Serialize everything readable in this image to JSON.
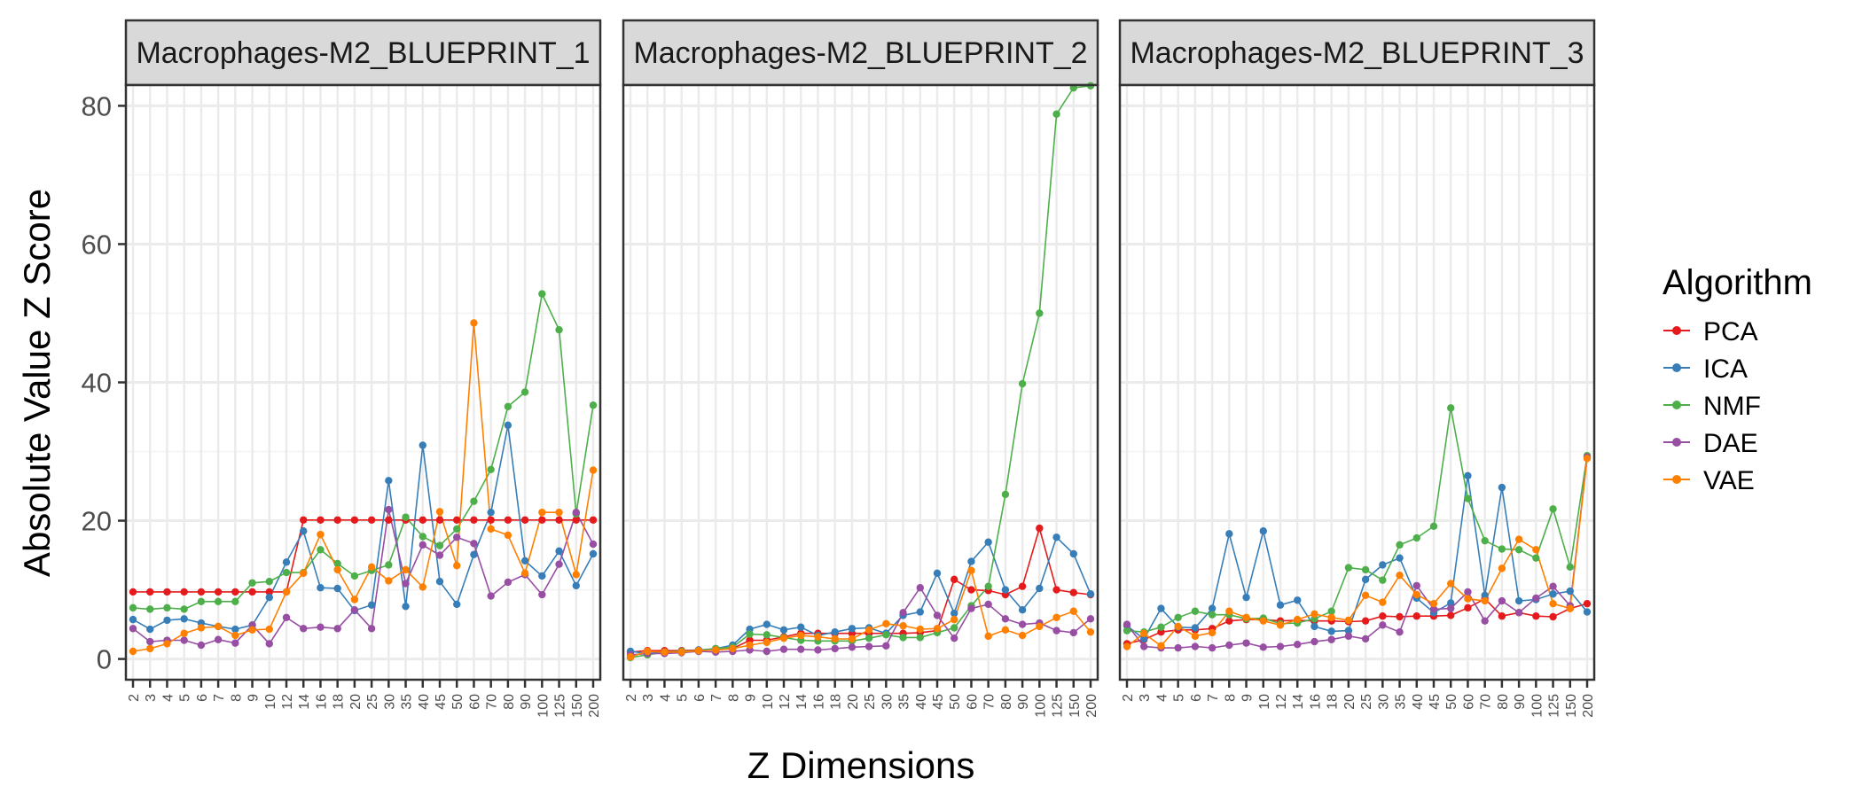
{
  "chart_data": {
    "type": "line",
    "xlabel": "Z Dimensions",
    "ylabel": "Absolute Value Z Score",
    "ylim": [
      -3,
      83
    ],
    "yticks": [
      0,
      20,
      40,
      60,
      80
    ],
    "grid": true,
    "legend_position": "right",
    "legend_title": "Algorithm",
    "categories": [
      "2",
      "3",
      "4",
      "5",
      "6",
      "7",
      "8",
      "9",
      "10",
      "12",
      "14",
      "16",
      "18",
      "20",
      "25",
      "30",
      "35",
      "40",
      "45",
      "50",
      "60",
      "70",
      "80",
      "90",
      "100",
      "125",
      "150",
      "200"
    ],
    "series_meta": [
      {
        "name": "PCA",
        "color": "#e41a1c"
      },
      {
        "name": "ICA",
        "color": "#377eb8"
      },
      {
        "name": "NMF",
        "color": "#4daf4a"
      },
      {
        "name": "DAE",
        "color": "#984ea3"
      },
      {
        "name": "VAE",
        "color": "#ff7f00"
      }
    ],
    "panels": [
      {
        "title": "Macrophages-M2_BLUEPRINT_1",
        "series": [
          {
            "name": "PCA",
            "values": [
              9.7,
              9.7,
              9.7,
              9.7,
              9.7,
              9.7,
              9.7,
              9.7,
              9.7,
              9.7,
              20.1,
              20.1,
              20.1,
              20.1,
              20.1,
              20.1,
              20.1,
              20.1,
              20.1,
              20.1,
              20.1,
              20.1,
              20.1,
              20.1,
              20.1,
              20.1,
              20.1,
              20.1
            ]
          },
          {
            "name": "ICA",
            "values": [
              5.7,
              4.3,
              5.6,
              5.8,
              5.2,
              4.7,
              4.3,
              4.9,
              8.9,
              14.0,
              18.5,
              10.3,
              10.2,
              7.0,
              7.8,
              25.8,
              7.6,
              30.9,
              11.2,
              7.9,
              15.1,
              21.2,
              33.8,
              14.2,
              12.0,
              15.6,
              10.6,
              15.2
            ]
          },
          {
            "name": "NMF",
            "values": [
              7.4,
              7.2,
              7.4,
              7.2,
              8.3,
              8.3,
              8.3,
              11.0,
              11.2,
              12.5,
              12.5,
              15.8,
              13.8,
              12.0,
              12.8,
              13.6,
              20.5,
              17.7,
              16.4,
              18.8,
              22.8,
              27.4,
              36.5,
              38.6,
              52.8,
              47.6,
              21.0,
              36.7
            ]
          },
          {
            "name": "DAE",
            "values": [
              4.4,
              2.5,
              2.7,
              2.7,
              2.0,
              2.8,
              2.3,
              4.9,
              2.2,
              6.0,
              4.4,
              4.6,
              4.4,
              7.1,
              4.4,
              21.6,
              10.9,
              16.5,
              15.0,
              17.6,
              16.7,
              9.1,
              11.1,
              12.2,
              9.3,
              13.7,
              21.2,
              16.6
            ]
          },
          {
            "name": "VAE",
            "values": [
              1.1,
              1.5,
              2.2,
              3.7,
              4.5,
              4.7,
              3.4,
              4.2,
              4.3,
              9.7,
              12.4,
              18.0,
              12.9,
              8.6,
              13.3,
              11.3,
              12.9,
              10.4,
              21.3,
              13.5,
              48.6,
              18.8,
              17.9,
              12.4,
              21.2,
              21.2,
              12.2,
              27.3
            ]
          }
        ]
      },
      {
        "title": "Macrophages-M2_BLUEPRINT_2",
        "series": [
          {
            "name": "PCA",
            "values": [
              1.0,
              1.2,
              1.2,
              1.2,
              1.3,
              1.3,
              1.5,
              2.7,
              2.7,
              3.2,
              3.7,
              3.7,
              3.7,
              3.7,
              3.7,
              3.7,
              3.7,
              3.8,
              4.1,
              11.5,
              10.0,
              9.9,
              9.3,
              10.5,
              18.9,
              10.0,
              9.6,
              9.3
            ]
          },
          {
            "name": "ICA",
            "values": [
              1.1,
              0.8,
              1.0,
              1.0,
              1.3,
              1.5,
              2.0,
              4.3,
              5.0,
              4.2,
              4.6,
              3.4,
              3.9,
              4.4,
              4.5,
              3.7,
              6.3,
              6.8,
              12.4,
              6.6,
              14.1,
              16.9,
              10.0,
              7.1,
              10.2,
              17.6,
              15.2,
              9.4
            ]
          },
          {
            "name": "NMF",
            "values": [
              0.2,
              0.6,
              1.0,
              1.1,
              1.2,
              1.5,
              1.7,
              3.6,
              3.5,
              3.1,
              2.7,
              2.6,
              2.6,
              2.6,
              3.0,
              3.5,
              3.1,
              3.1,
              3.8,
              4.5,
              7.7,
              10.5,
              23.8,
              39.8,
              50.0,
              78.8,
              82.6,
              82.9
            ]
          },
          {
            "name": "DAE",
            "values": [
              0.6,
              0.8,
              0.8,
              0.9,
              1.1,
              1.0,
              1.1,
              1.3,
              1.1,
              1.4,
              1.4,
              1.3,
              1.5,
              1.7,
              1.8,
              1.9,
              6.7,
              10.3,
              6.3,
              3.0,
              7.3,
              7.9,
              5.8,
              5.0,
              5.2,
              4.1,
              3.8,
              5.8
            ]
          },
          {
            "name": "VAE",
            "values": [
              0.3,
              1.1,
              1.0,
              1.0,
              1.2,
              1.3,
              1.5,
              2.0,
              2.4,
              3.0,
              3.4,
              3.2,
              2.9,
              2.9,
              4.2,
              5.1,
              4.8,
              4.3,
              4.4,
              5.7,
              12.8,
              3.3,
              4.2,
              3.4,
              4.7,
              6.0,
              6.9,
              3.9
            ]
          }
        ]
      },
      {
        "title": "Macrophages-M2_BLUEPRINT_3",
        "series": [
          {
            "name": "PCA",
            "values": [
              2.2,
              2.8,
              3.9,
              4.2,
              4.2,
              4.4,
              5.5,
              5.7,
              5.7,
              5.5,
              5.6,
              5.5,
              5.5,
              5.4,
              5.5,
              6.2,
              6.1,
              6.2,
              6.2,
              6.3,
              7.4,
              8.7,
              6.2,
              6.7,
              6.2,
              6.1,
              7.3,
              8.0
            ]
          },
          {
            "name": "ICA",
            "values": [
              4.8,
              2.9,
              7.3,
              4.6,
              4.5,
              7.3,
              18.1,
              8.9,
              18.5,
              7.8,
              8.5,
              4.7,
              4.0,
              4.1,
              11.5,
              13.6,
              14.6,
              8.8,
              6.7,
              8.1,
              26.5,
              9.2,
              24.8,
              8.4,
              8.6,
              9.4,
              9.8,
              6.8
            ]
          },
          {
            "name": "NMF",
            "values": [
              4.1,
              3.9,
              4.6,
              6.0,
              6.9,
              6.4,
              6.4,
              5.8,
              5.9,
              5.1,
              5.2,
              5.8,
              6.9,
              13.2,
              12.9,
              11.4,
              16.5,
              17.5,
              19.2,
              36.3,
              23.2,
              17.1,
              15.9,
              15.8,
              14.6,
              21.7,
              13.3,
              29.4
            ]
          },
          {
            "name": "DAE",
            "values": [
              5.0,
              1.8,
              1.6,
              1.6,
              1.8,
              1.6,
              2.0,
              2.3,
              1.7,
              1.8,
              2.1,
              2.5,
              2.8,
              3.3,
              2.9,
              4.9,
              3.9,
              10.6,
              7.2,
              7.3,
              9.7,
              5.5,
              8.4,
              6.7,
              8.8,
              10.5,
              7.7,
              29.2
            ]
          },
          {
            "name": "VAE",
            "values": [
              1.8,
              3.7,
              1.9,
              4.7,
              3.3,
              3.8,
              6.9,
              6.0,
              5.5,
              4.9,
              5.7,
              6.5,
              6.0,
              5.6,
              9.2,
              8.2,
              12.1,
              9.3,
              8.0,
              10.9,
              8.7,
              8.4,
              13.1,
              17.3,
              15.8,
              8.0,
              7.3,
              29.0
            ]
          }
        ]
      }
    ]
  }
}
